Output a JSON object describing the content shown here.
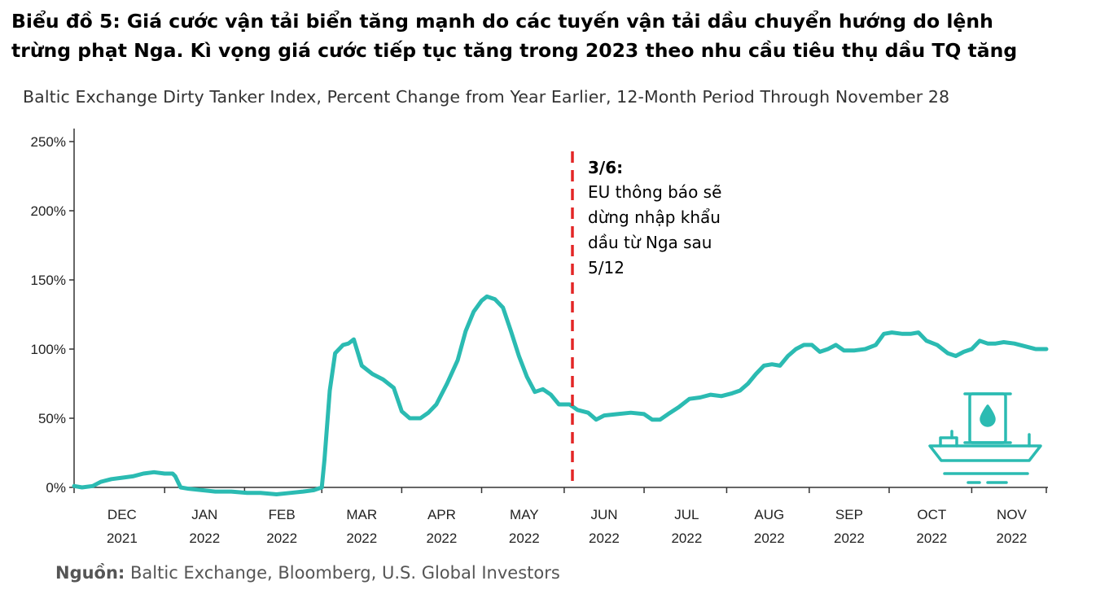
{
  "heading": {
    "line1": "Biểu đồ 5: Giá cước vận tải biển tăng mạnh do các tuyến vận tải dầu chuyển hướng do lệnh",
    "line2": "trừng phạt Nga. Kì vọng giá cước tiếp tục tăng trong 2023 theo nhu cầu tiêu thụ dầu TQ tăng"
  },
  "source": {
    "label": "Nguồn:",
    "text": " Baltic Exchange, Bloomberg, U.S. Global Investors"
  },
  "chart_data": {
    "type": "line",
    "title": "Baltic Exchange Dirty Tanker Index, Percent Change from Year Earlier, 12-Month Period Through November 28",
    "xlabel": "",
    "ylabel": "",
    "ylim": [
      0,
      250
    ],
    "yticks": [
      {
        "value": 0,
        "label": "0%"
      },
      {
        "value": 50,
        "label": "50%"
      },
      {
        "value": 100,
        "label": "100%"
      },
      {
        "value": 150,
        "label": "150%"
      },
      {
        "value": 200,
        "label": "200%"
      },
      {
        "value": 250,
        "label": "250%"
      }
    ],
    "xlim": [
      "2021-11-28",
      "2022-11-28"
    ],
    "xticks": [
      {
        "month": "DEC",
        "year": "2021",
        "center": "2021-12-16"
      },
      {
        "month": "JAN",
        "year": "2022",
        "center": "2022-01-16"
      },
      {
        "month": "FEB",
        "year": "2022",
        "center": "2022-02-14"
      },
      {
        "month": "MAR",
        "year": "2022",
        "center": "2022-03-16"
      },
      {
        "month": "APR",
        "year": "2022",
        "center": "2022-04-15"
      },
      {
        "month": "MAY",
        "year": "2022",
        "center": "2022-05-16"
      },
      {
        "month": "JUN",
        "year": "2022",
        "center": "2022-06-15"
      },
      {
        "month": "JUL",
        "year": "2022",
        "center": "2022-07-16"
      },
      {
        "month": "AUG",
        "year": "2022",
        "center": "2022-08-16"
      },
      {
        "month": "SEP",
        "year": "2022",
        "center": "2022-09-15"
      },
      {
        "month": "OCT",
        "year": "2022",
        "center": "2022-10-16"
      },
      {
        "month": "NOV",
        "year": "2022",
        "center": "2022-11-15"
      }
    ],
    "grid": false,
    "series": [
      {
        "color": "#2bbbb2",
        "points": [
          [
            "2021-11-28",
            1
          ],
          [
            "2021-12-01",
            0
          ],
          [
            "2021-12-05",
            1
          ],
          [
            "2021-12-08",
            4
          ],
          [
            "2021-12-12",
            6
          ],
          [
            "2021-12-16",
            7
          ],
          [
            "2021-12-20",
            8
          ],
          [
            "2021-12-24",
            10
          ],
          [
            "2021-12-28",
            11
          ],
          [
            "2022-01-01",
            10
          ],
          [
            "2022-01-04",
            10
          ],
          [
            "2022-01-05",
            8
          ],
          [
            "2022-01-07",
            0
          ],
          [
            "2022-01-10",
            -1
          ],
          [
            "2022-01-15",
            -2
          ],
          [
            "2022-01-20",
            -3
          ],
          [
            "2022-01-26",
            -3
          ],
          [
            "2022-02-01",
            -4
          ],
          [
            "2022-02-06",
            -4
          ],
          [
            "2022-02-12",
            -5
          ],
          [
            "2022-02-17",
            -4
          ],
          [
            "2022-02-22",
            -3
          ],
          [
            "2022-02-26",
            -2
          ],
          [
            "2022-03-01",
            0
          ],
          [
            "2022-03-02",
            20
          ],
          [
            "2022-03-04",
            70
          ],
          [
            "2022-03-06",
            97
          ],
          [
            "2022-03-09",
            103
          ],
          [
            "2022-03-11",
            104
          ],
          [
            "2022-03-13",
            107
          ],
          [
            "2022-03-16",
            88
          ],
          [
            "2022-03-20",
            82
          ],
          [
            "2022-03-24",
            78
          ],
          [
            "2022-03-28",
            72
          ],
          [
            "2022-03-31",
            55
          ],
          [
            "2022-04-03",
            50
          ],
          [
            "2022-04-07",
            50
          ],
          [
            "2022-04-10",
            54
          ],
          [
            "2022-04-13",
            60
          ],
          [
            "2022-04-17",
            75
          ],
          [
            "2022-04-21",
            92
          ],
          [
            "2022-04-24",
            113
          ],
          [
            "2022-04-27",
            127
          ],
          [
            "2022-04-30",
            135
          ],
          [
            "2022-05-02",
            138
          ],
          [
            "2022-05-05",
            136
          ],
          [
            "2022-05-08",
            130
          ],
          [
            "2022-05-11",
            113
          ],
          [
            "2022-05-14",
            95
          ],
          [
            "2022-05-17",
            80
          ],
          [
            "2022-05-20",
            69
          ],
          [
            "2022-05-23",
            71
          ],
          [
            "2022-05-26",
            67
          ],
          [
            "2022-05-29",
            60
          ],
          [
            "2022-06-02",
            60
          ],
          [
            "2022-06-05",
            56
          ],
          [
            "2022-06-09",
            54
          ],
          [
            "2022-06-12",
            49
          ],
          [
            "2022-06-15",
            52
          ],
          [
            "2022-06-20",
            53
          ],
          [
            "2022-06-25",
            54
          ],
          [
            "2022-06-30",
            53
          ],
          [
            "2022-07-03",
            49
          ],
          [
            "2022-07-06",
            49
          ],
          [
            "2022-07-09",
            53
          ],
          [
            "2022-07-13",
            58
          ],
          [
            "2022-07-17",
            64
          ],
          [
            "2022-07-21",
            65
          ],
          [
            "2022-07-25",
            67
          ],
          [
            "2022-07-29",
            66
          ],
          [
            "2022-08-02",
            68
          ],
          [
            "2022-08-05",
            70
          ],
          [
            "2022-08-08",
            75
          ],
          [
            "2022-08-11",
            82
          ],
          [
            "2022-08-14",
            88
          ],
          [
            "2022-08-17",
            89
          ],
          [
            "2022-08-20",
            88
          ],
          [
            "2022-08-23",
            95
          ],
          [
            "2022-08-26",
            100
          ],
          [
            "2022-08-29",
            103
          ],
          [
            "2022-09-01",
            103
          ],
          [
            "2022-09-04",
            98
          ],
          [
            "2022-09-07",
            100
          ],
          [
            "2022-09-10",
            103
          ],
          [
            "2022-09-13",
            99
          ],
          [
            "2022-09-17",
            99
          ],
          [
            "2022-09-21",
            100
          ],
          [
            "2022-09-25",
            103
          ],
          [
            "2022-09-28",
            111
          ],
          [
            "2022-10-01",
            112
          ],
          [
            "2022-10-05",
            111
          ],
          [
            "2022-10-08",
            111
          ],
          [
            "2022-10-11",
            112
          ],
          [
            "2022-10-14",
            106
          ],
          [
            "2022-10-18",
            103
          ],
          [
            "2022-10-22",
            97
          ],
          [
            "2022-10-25",
            95
          ],
          [
            "2022-10-28",
            98
          ],
          [
            "2022-10-31",
            100
          ],
          [
            "2022-11-03",
            106
          ],
          [
            "2022-11-06",
            104
          ],
          [
            "2022-11-09",
            104
          ],
          [
            "2022-11-12",
            105
          ],
          [
            "2022-11-16",
            104
          ],
          [
            "2022-11-20",
            102
          ],
          [
            "2022-11-24",
            100
          ],
          [
            "2022-11-28",
            100
          ]
        ]
      }
    ],
    "annotation": {
      "date_label": "3/6:",
      "lines": [
        "EU thông báo sẽ",
        "dừng nhập khẩu",
        "dầu từ Nga sau",
        "5/12"
      ],
      "line_color": "#e32626"
    },
    "icon": "oil-tanker-ship-icon"
  }
}
